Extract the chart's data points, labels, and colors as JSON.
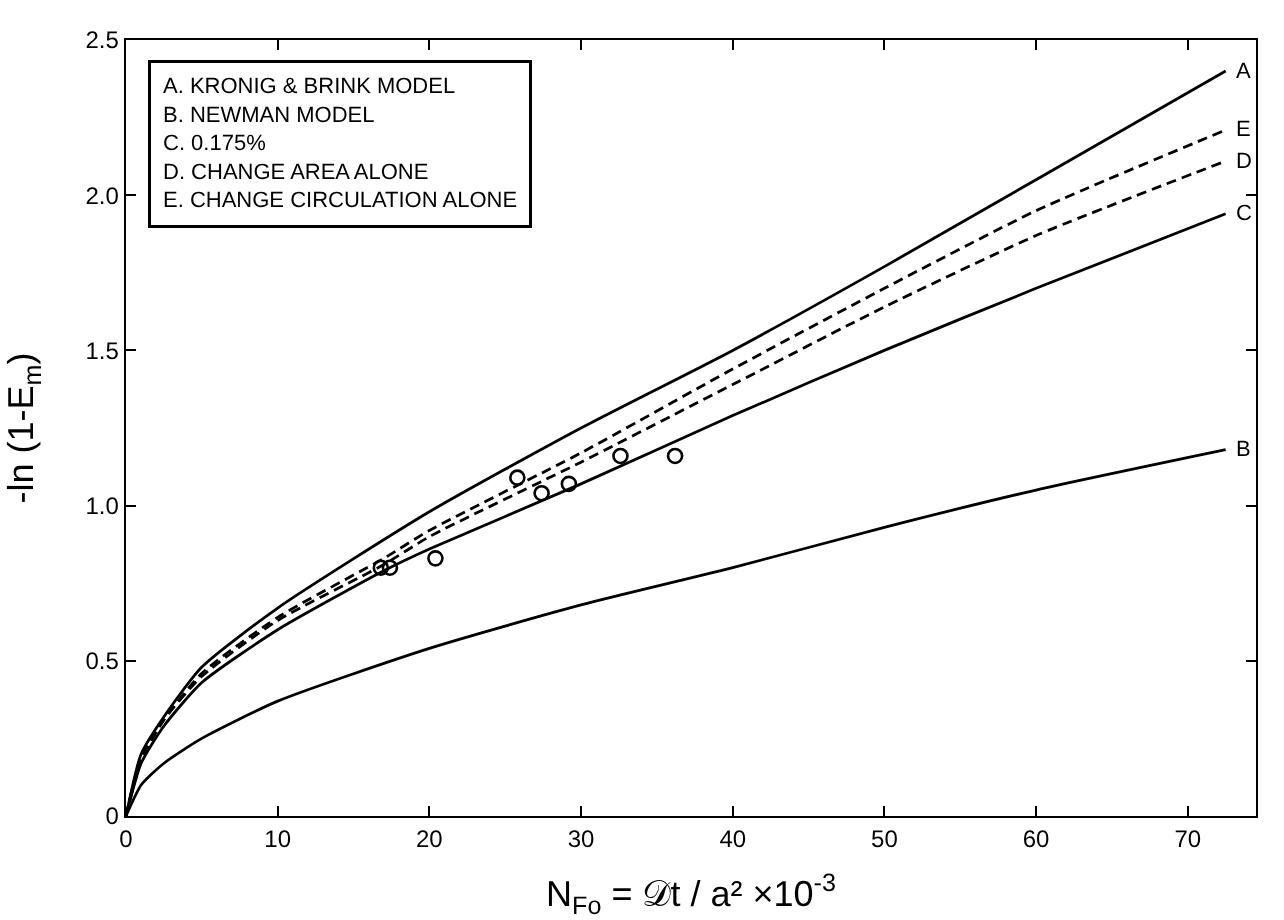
{
  "chart_data": {
    "type": "line",
    "xlabel": "N$_{Fo}$ = 𝒟t / a² ×10$^{-3}$",
    "ylabel": "-ln (1-E$_{m}$)",
    "xlim": [
      0,
      74.5
    ],
    "ylim": [
      0,
      2.5
    ],
    "xticks": [
      0,
      10,
      20,
      30,
      40,
      50,
      60,
      70
    ],
    "yticks": [
      0,
      0.5,
      {
        "value": 1,
        "label": "1.0"
      },
      1.5,
      {
        "value": 2,
        "label": "2.0"
      },
      2.5
    ],
    "grid": false,
    "legend": "right",
    "series": [
      {
        "name": "A",
        "color": "#000000",
        "line_style": "solid",
        "x": [
          0,
          1,
          2.5,
          5,
          10,
          20,
          30,
          40,
          50,
          60,
          72.5
        ],
        "values": [
          0,
          0.2,
          0.32,
          0.48,
          0.67,
          0.98,
          1.25,
          1.5,
          1.77,
          2.05,
          2.4
        ]
      },
      {
        "name": "B",
        "color": "#000000",
        "line_style": "solid",
        "x": [
          0,
          1,
          2.5,
          5,
          10,
          20,
          30,
          40,
          50,
          60,
          72.5
        ],
        "values": [
          0,
          0.1,
          0.17,
          0.25,
          0.37,
          0.54,
          0.68,
          0.8,
          0.93,
          1.05,
          1.18
        ]
      },
      {
        "name": "C",
        "color": "#000000",
        "line_style": "solid",
        "x": [
          0,
          1,
          2.5,
          5,
          10,
          17,
          20,
          30,
          40,
          50,
          60,
          72.5
        ],
        "values": [
          0,
          0.17,
          0.29,
          0.43,
          0.6,
          0.79,
          0.86,
          1.07,
          1.29,
          1.5,
          1.7,
          1.94
        ]
      },
      {
        "name": "D",
        "color": "#000000",
        "line_style": "dashed",
        "x": [
          0,
          1,
          2.5,
          5,
          10,
          17,
          20,
          30,
          40,
          50,
          60,
          72.5
        ],
        "values": [
          0,
          0.18,
          0.31,
          0.45,
          0.63,
          0.81,
          0.9,
          1.14,
          1.39,
          1.64,
          1.87,
          2.11
        ]
      },
      {
        "name": "E",
        "color": "#000000",
        "line_style": "dashed",
        "x": [
          0,
          1,
          2.5,
          5,
          10,
          17,
          20,
          30,
          40,
          50,
          60,
          72.5
        ],
        "values": [
          0,
          0.19,
          0.31,
          0.46,
          0.64,
          0.83,
          0.92,
          1.17,
          1.44,
          1.7,
          1.95,
          2.21
        ]
      },
      {
        "type": "scatter",
        "color": "#000000",
        "marker": "circle",
        "x": [
          16.8,
          17.4,
          20.4,
          25.8,
          27.4,
          29.2,
          32.6,
          36.2
        ],
        "values": [
          0.8,
          0.8,
          0.83,
          1.09,
          1.04,
          1.07,
          1.16,
          1.16
        ]
      }
    ],
    "annotations": [
      "A. KRONIG & BRINK MODEL",
      "B. NEWMAN MODEL",
      "C. 0.175%",
      "D. CHANGE AREA ALONE",
      "E. CHANGE CIRCULATION ALONE"
    ]
  }
}
